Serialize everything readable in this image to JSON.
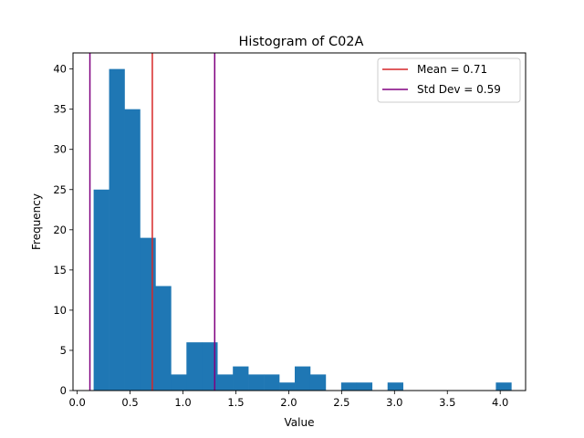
{
  "chart_data": {
    "type": "bar",
    "title": "Histogram of C02A",
    "xlabel": "Value",
    "ylabel": "Frequency",
    "xlim": [
      -0.04,
      4.24
    ],
    "ylim": [
      0,
      42
    ],
    "xticks": [
      0.0,
      0.5,
      1.0,
      1.5,
      2.0,
      2.5,
      3.0,
      3.5,
      4.0
    ],
    "xtick_labels": [
      "0.0",
      "0.5",
      "1.0",
      "1.5",
      "2.0",
      "2.5",
      "3.0",
      "3.5",
      "4.0"
    ],
    "yticks": [
      0,
      5,
      10,
      15,
      20,
      25,
      30,
      35,
      40
    ],
    "ytick_labels": [
      "0",
      "5",
      "10",
      "15",
      "20",
      "25",
      "30",
      "35",
      "40"
    ],
    "bin_start": 0.155,
    "bin_width": 0.1463,
    "values": [
      25,
      40,
      35,
      19,
      13,
      2,
      6,
      6,
      2,
      3,
      2,
      2,
      1,
      3,
      2,
      0,
      1,
      1,
      0,
      1,
      0,
      0,
      0,
      0,
      0,
      0,
      1
    ],
    "bar_color": "#1f77b4",
    "vlines": [
      {
        "name": "mean",
        "x": 0.71,
        "color": "#d62728",
        "label": "Mean = 0.71"
      },
      {
        "name": "std-low",
        "x": 0.12,
        "color": "#800080",
        "label": ""
      },
      {
        "name": "std-high",
        "x": 1.3,
        "color": "#800080",
        "label": ""
      }
    ],
    "legend": {
      "position": "upper right",
      "entries": [
        {
          "label": "Mean = 0.71",
          "color": "#d62728"
        },
        {
          "label": "Std Dev = 0.59",
          "color": "#800080"
        }
      ]
    },
    "grid": false
  }
}
